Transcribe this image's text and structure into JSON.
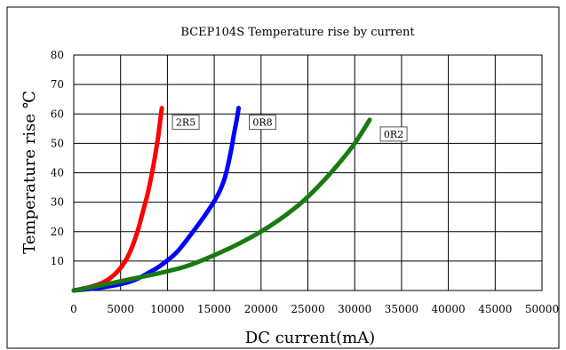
{
  "chart_data": {
    "type": "line",
    "title": "BCEP104S Temperature rise by current",
    "xlabel": "DC current(mA)",
    "ylabel": "Temperature rise ℃",
    "xlim": [
      0,
      50000
    ],
    "ylim": [
      0,
      80
    ],
    "x_ticks": [
      0,
      5000,
      10000,
      15000,
      20000,
      25000,
      30000,
      35000,
      40000,
      45000,
      50000
    ],
    "y_ticks": [
      10,
      20,
      30,
      40,
      50,
      60,
      70,
      80
    ],
    "grid": true,
    "series": [
      {
        "name": "2R5",
        "color": "#ff0000",
        "points": [
          [
            0,
            0
          ],
          [
            1500,
            1
          ],
          [
            3000,
            2.5
          ],
          [
            4200,
            5
          ],
          [
            5200,
            8.5
          ],
          [
            6000,
            13
          ],
          [
            6800,
            20
          ],
          [
            7400,
            27
          ],
          [
            7900,
            33
          ],
          [
            8300,
            39
          ],
          [
            8700,
            46
          ],
          [
            9000,
            52
          ],
          [
            9200,
            57
          ],
          [
            9400,
            62
          ]
        ]
      },
      {
        "name": "0R8",
        "color": "#0000ff",
        "points": [
          [
            0,
            0
          ],
          [
            3000,
            1
          ],
          [
            6000,
            3
          ],
          [
            8000,
            6
          ],
          [
            9500,
            9
          ],
          [
            11000,
            13
          ],
          [
            12500,
            19
          ],
          [
            14000,
            25.5
          ],
          [
            15300,
            32
          ],
          [
            16100,
            38
          ],
          [
            16700,
            46
          ],
          [
            17100,
            53
          ],
          [
            17400,
            58
          ],
          [
            17600,
            62
          ]
        ]
      },
      {
        "name": "0R2",
        "color": "#1a7a12",
        "points": [
          [
            0,
            0
          ],
          [
            3000,
            1.8
          ],
          [
            6000,
            3.8
          ],
          [
            9000,
            5.8
          ],
          [
            12000,
            8.2
          ],
          [
            15000,
            12
          ],
          [
            18000,
            16.5
          ],
          [
            21000,
            22
          ],
          [
            24000,
            29
          ],
          [
            26000,
            35
          ],
          [
            28000,
            42
          ],
          [
            30000,
            50
          ],
          [
            31600,
            58
          ]
        ]
      }
    ]
  }
}
